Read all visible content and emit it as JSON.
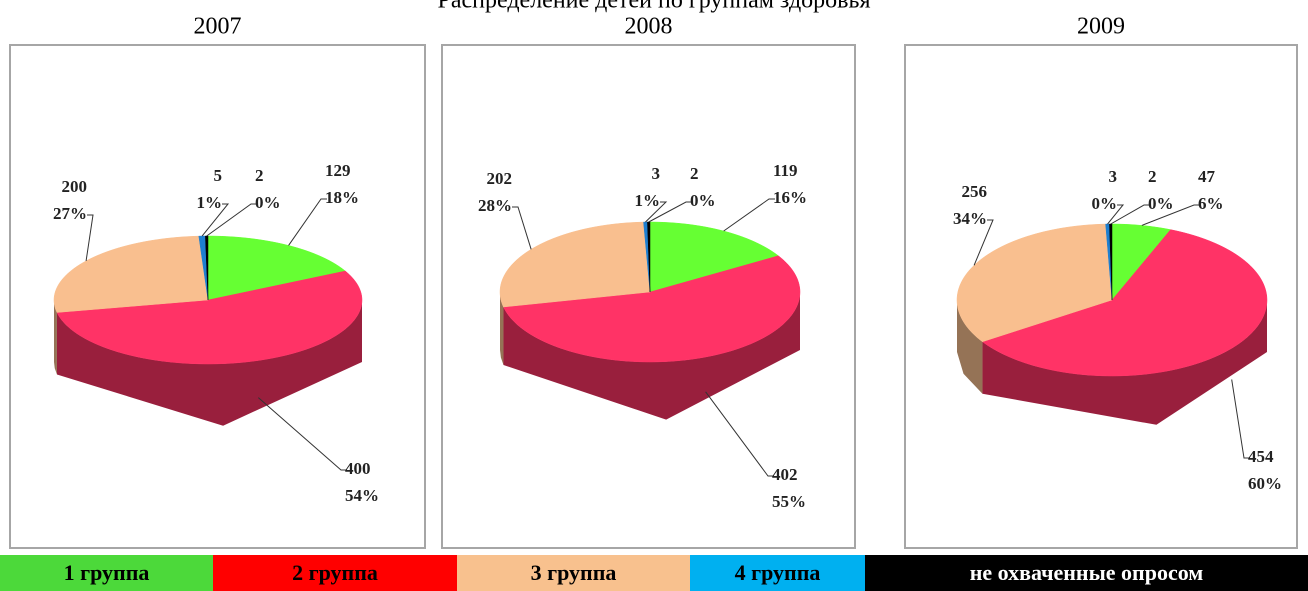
{
  "title": "Распределение детей по группам здоровья",
  "legend": [
    {
      "name": "1 группа",
      "color": "#4cd93a"
    },
    {
      "name": "2 группа",
      "color": "#ff0000"
    },
    {
      "name": "3 группа",
      "color": "#f8c18e"
    },
    {
      "name": "4 группа",
      "color": "#00b0f0"
    },
    {
      "name": "не охваченные опросом",
      "color": "#000000"
    }
  ],
  "chart_data": [
    {
      "type": "pie",
      "title": "2007",
      "values": [
        129,
        400,
        200,
        5,
        2
      ],
      "percent_labels": [
        "18%",
        "54%",
        "27%",
        "1%",
        "0%"
      ],
      "colors": [
        "#66ff33",
        "#ff3366",
        "#f9bf8f",
        "#1e7fd0",
        "#000000"
      ]
    },
    {
      "type": "pie",
      "title": "2008",
      "values": [
        119,
        402,
        202,
        3,
        2
      ],
      "percent_labels": [
        "16%",
        "55%",
        "28%",
        "1%",
        "0%"
      ],
      "colors": [
        "#66ff33",
        "#ff3366",
        "#f9bf8f",
        "#1e7fd0",
        "#000000"
      ]
    },
    {
      "type": "pie",
      "title": "2009",
      "values": [
        47,
        454,
        256,
        3,
        2
      ],
      "percent_labels": [
        "6%",
        "60%",
        "34%",
        "0%",
        "0%"
      ],
      "colors": [
        "#66ff33",
        "#ff3366",
        "#f9bf8f",
        "#1e7fd0",
        "#000000"
      ]
    }
  ]
}
